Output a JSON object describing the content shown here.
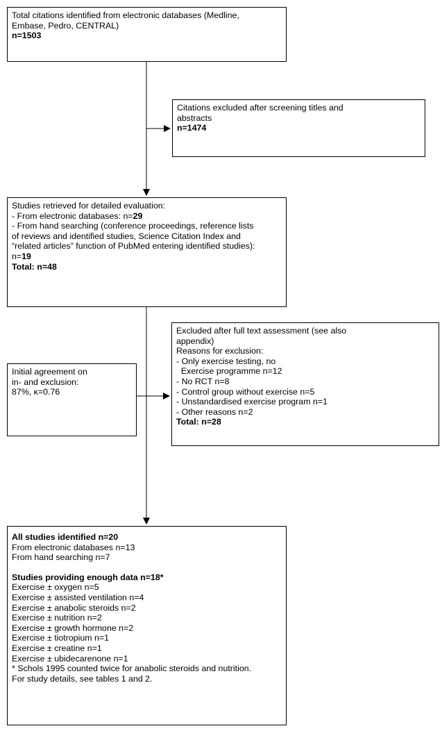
{
  "box1": {
    "line1": "Total citations identified from electronic databases (Medline,",
    "line2": "Embase, Pedro, CENTRAL)",
    "count": "n=1503"
  },
  "box2": {
    "line1": "Citations excluded after screening titles and",
    "line2": "abstracts",
    "count": "n=1474"
  },
  "box3": {
    "line1": "Studies retrieved for detailed evaluation:",
    "line2_prefix": "- From electronic databases: n=",
    "line2_value": "29",
    "line3": "- From hand searching (conference proceedings, reference lists",
    "line4": "of reviews and identified studies, Science Citation Index and",
    "line5": "“related articles” function of PubMed entering identified studies):",
    "line6_prefix": "n=",
    "line6_value": "19",
    "total": "Total: n=48"
  },
  "box4": {
    "line1": "Initial agreement on",
    "line2": "in- and exclusion:",
    "line3": "87%, κ=0.76"
  },
  "box5": {
    "line1": "Excluded after full text assessment (see also",
    "line2": "appendix)",
    "line3": "Reasons for exclusion:",
    "reasons": [
      "- Only exercise testing, no",
      "  Exercise programme n=12",
      "- No RCT n=8",
      "- Control group without exercise n=5",
      "- Unstandardised exercise program n=1",
      "- Other reasons n=2"
    ],
    "total": "Total: n=28"
  },
  "box6": {
    "title": "All studies identified n=20",
    "line1": "From electronic databases n=13",
    "line2": "From hand searching n=7",
    "subtitle": "Studies providing enough data n=18*",
    "items": [
      "Exercise ± oxygen n=5",
      "Exercise ± assisted ventilation n=4",
      "Exercise ± anabolic steroids n=2",
      "Exercise ± nutrition n=2",
      "Exercise ± growth hormone n=2",
      "Exercise ± tiotropium n=1",
      "Exercise ± creatine n=1",
      "Exercise ± ubidecarenone n=1"
    ],
    "footnote1": "* Schols 1995 counted twice for anabolic steroids and nutrition.",
    "footnote2": "For study details, see tables 1 and 2."
  }
}
